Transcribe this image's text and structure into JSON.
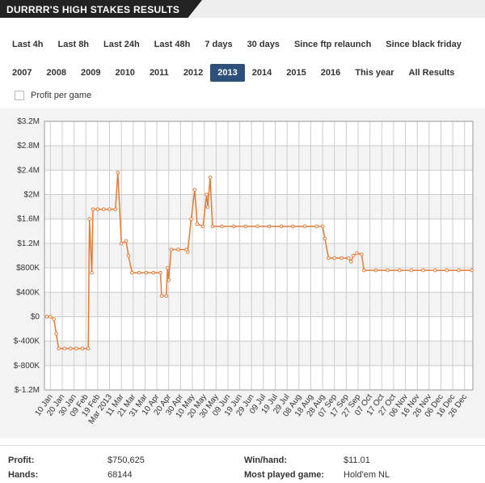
{
  "header": {
    "title": "DURRRR'S HIGH STAKES RESULTS"
  },
  "time_filters": [
    "Last 4h",
    "Last 8h",
    "Last 24h",
    "Last 48h",
    "7 days",
    "30 days",
    "Since ftp relaunch",
    "Since black friday"
  ],
  "year_filters": [
    {
      "label": "2007",
      "active": false
    },
    {
      "label": "2008",
      "active": false
    },
    {
      "label": "2009",
      "active": false
    },
    {
      "label": "2010",
      "active": false
    },
    {
      "label": "2011",
      "active": false
    },
    {
      "label": "2012",
      "active": false
    },
    {
      "label": "2013",
      "active": true
    },
    {
      "label": "2014",
      "active": false
    },
    {
      "label": "2015",
      "active": false
    },
    {
      "label": "2016",
      "active": false
    },
    {
      "label": "This year",
      "active": false
    },
    {
      "label": "All Results",
      "active": false
    }
  ],
  "checkbox": {
    "label": "Profit per game",
    "checked": false
  },
  "chart_data": {
    "type": "line",
    "grid": true,
    "xlim": [
      5,
      367
    ],
    "xticks": [
      {
        "value": 10,
        "label": "10 Jan"
      },
      {
        "value": 20,
        "label": "20 Jan"
      },
      {
        "value": 30,
        "label": "30 Jan"
      },
      {
        "value": 40,
        "label": "09 Feb"
      },
      {
        "value": 50,
        "label": "19 Feb"
      },
      {
        "value": 60,
        "label": "Mar 2013"
      },
      {
        "value": 70,
        "label": "11 Mar"
      },
      {
        "value": 80,
        "label": "21 Mar"
      },
      {
        "value": 90,
        "label": "31 Mar"
      },
      {
        "value": 100,
        "label": "10 Apr"
      },
      {
        "value": 110,
        "label": "20 Apr"
      },
      {
        "value": 120,
        "label": "30 Apr"
      },
      {
        "value": 130,
        "label": "10 May"
      },
      {
        "value": 140,
        "label": "20 May"
      },
      {
        "value": 150,
        "label": "30 May"
      },
      {
        "value": 160,
        "label": "09 Jun"
      },
      {
        "value": 170,
        "label": "19 Jun"
      },
      {
        "value": 180,
        "label": "29 Jun"
      },
      {
        "value": 190,
        "label": "09 Jul"
      },
      {
        "value": 200,
        "label": "19 Jul"
      },
      {
        "value": 210,
        "label": "29 Jul"
      },
      {
        "value": 220,
        "label": "08 Aug"
      },
      {
        "value": 230,
        "label": "18 Aug"
      },
      {
        "value": 240,
        "label": "28 Aug"
      },
      {
        "value": 250,
        "label": "07 Sep"
      },
      {
        "value": 260,
        "label": "17 Sep"
      },
      {
        "value": 270,
        "label": "27 Sep"
      },
      {
        "value": 280,
        "label": "07 Oct"
      },
      {
        "value": 290,
        "label": "17 Oct"
      },
      {
        "value": 300,
        "label": "27 Oct"
      },
      {
        "value": 310,
        "label": "06 Nov"
      },
      {
        "value": 320,
        "label": "16 Nov"
      },
      {
        "value": 330,
        "label": "26 Nov"
      },
      {
        "value": 340,
        "label": "06 Dec"
      },
      {
        "value": 350,
        "label": "16 Dec"
      },
      {
        "value": 360,
        "label": "26 Dec"
      }
    ],
    "ylim": [
      -1200000,
      3200000
    ],
    "yticks": [
      {
        "value": 3200000,
        "label": "$3.2M"
      },
      {
        "value": 2800000,
        "label": "$2.8M"
      },
      {
        "value": 2400000,
        "label": "$2.4M"
      },
      {
        "value": 2000000,
        "label": "$2M"
      },
      {
        "value": 1600000,
        "label": "$1.6M"
      },
      {
        "value": 1200000,
        "label": "$1.2M"
      },
      {
        "value": 800000,
        "label": "$800K"
      },
      {
        "value": 400000,
        "label": "$400K"
      },
      {
        "value": 0,
        "label": "$0"
      },
      {
        "value": -400000,
        "label": "$-400K"
      },
      {
        "value": -800000,
        "label": "$-800K"
      },
      {
        "value": -1200000,
        "label": "$-1.2M"
      }
    ],
    "x": [
      7,
      10,
      13,
      15,
      17,
      22,
      27,
      32,
      37,
      42,
      43,
      45,
      46,
      50,
      55,
      60,
      65,
      67,
      70,
      74,
      76,
      79,
      85,
      91,
      97,
      103,
      104,
      108,
      109,
      110,
      112,
      118,
      125,
      126,
      129,
      132,
      134,
      139,
      142,
      143,
      145,
      147,
      155,
      165,
      175,
      185,
      195,
      205,
      215,
      225,
      235,
      240,
      242,
      245,
      250,
      256,
      262,
      264,
      266,
      269,
      273,
      275,
      285,
      295,
      305,
      315,
      325,
      335,
      345,
      355,
      366
    ],
    "series": [
      {
        "color": "#e07b39",
        "values": [
          0,
          0,
          -40000,
          -280000,
          -520000,
          -520000,
          -520000,
          -520000,
          -520000,
          -520000,
          1600000,
          720000,
          1760000,
          1760000,
          1760000,
          1760000,
          1760000,
          2360000,
          1200000,
          1240000,
          1000000,
          720000,
          720000,
          720000,
          720000,
          720000,
          340000,
          340000,
          800000,
          600000,
          1100000,
          1100000,
          1100000,
          1060000,
          1600000,
          2080000,
          1520000,
          1480000,
          2000000,
          1800000,
          2280000,
          1480000,
          1480000,
          1480000,
          1480000,
          1480000,
          1480000,
          1480000,
          1480000,
          1480000,
          1480000,
          1480000,
          1280000,
          960000,
          960000,
          960000,
          960000,
          900000,
          1000000,
          1040000,
          1020000,
          760000,
          760000,
          760000,
          760000,
          760000,
          760000,
          760000,
          760000,
          760000,
          760000
        ]
      }
    ]
  },
  "stats": [
    {
      "label": "Profit:",
      "value": "$750,625"
    },
    {
      "label": "Win/hand:",
      "value": "$11.01"
    },
    {
      "label": "Hands:",
      "value": "68144"
    },
    {
      "label": "Most played game:",
      "value": "Hold'em NL"
    }
  ]
}
